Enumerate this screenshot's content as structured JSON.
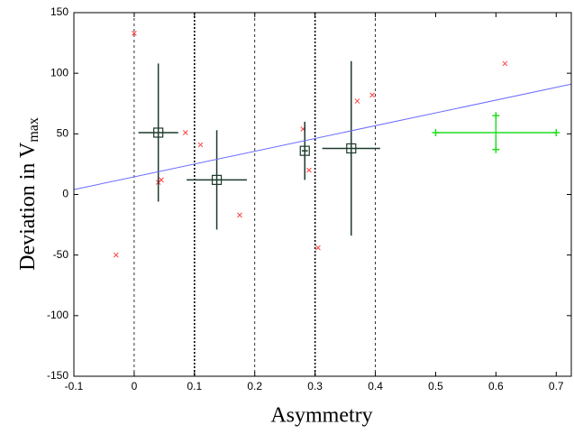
{
  "chart_data": {
    "type": "scatter",
    "xlabel": "Asymmetry",
    "ylabel": "Deviation in V",
    "ylabel_subscript": "max",
    "xlim": [
      -0.1,
      0.725
    ],
    "ylim": [
      -150,
      150
    ],
    "xticks": [
      -0.1,
      0,
      0.1,
      0.2,
      0.3,
      0.4,
      0.5,
      0.6,
      0.7
    ],
    "yticks": [
      -150,
      -100,
      -50,
      0,
      50,
      100,
      150
    ],
    "vlines": [
      0,
      0.1,
      0.2,
      0.3,
      0.4
    ],
    "series": [
      {
        "kind": "points",
        "marker": "x",
        "color": "#ff4040",
        "x": [
          0,
          -0.03,
          0.04,
          0.045,
          0.085,
          0.11,
          0.175,
          0.28,
          0.29,
          0.305,
          0.37,
          0.395,
          0.615
        ],
        "values": [
          133,
          -50,
          10,
          12,
          51,
          41,
          -17,
          54,
          20,
          -44,
          77,
          82,
          108
        ]
      },
      {
        "kind": "errorbar",
        "marker": "square",
        "color": "#1c3a2c",
        "x": [
          0.04,
          0.137,
          0.283,
          0.36
        ],
        "values": [
          51,
          12,
          36,
          38
        ],
        "xerr": [
          0.033,
          0.05,
          0.005,
          0.048
        ],
        "yerr": [
          57,
          41,
          24,
          72
        ]
      },
      {
        "kind": "errorbar",
        "marker": "plus",
        "color": "#22dd22",
        "x": [
          0.6
        ],
        "values": [
          51
        ],
        "xerr": [
          0.1
        ],
        "yerr": [
          14
        ]
      },
      {
        "kind": "line",
        "color": "#6a6aff",
        "x": [
          -0.1,
          0.725
        ],
        "values": [
          4,
          91
        ]
      }
    ]
  }
}
